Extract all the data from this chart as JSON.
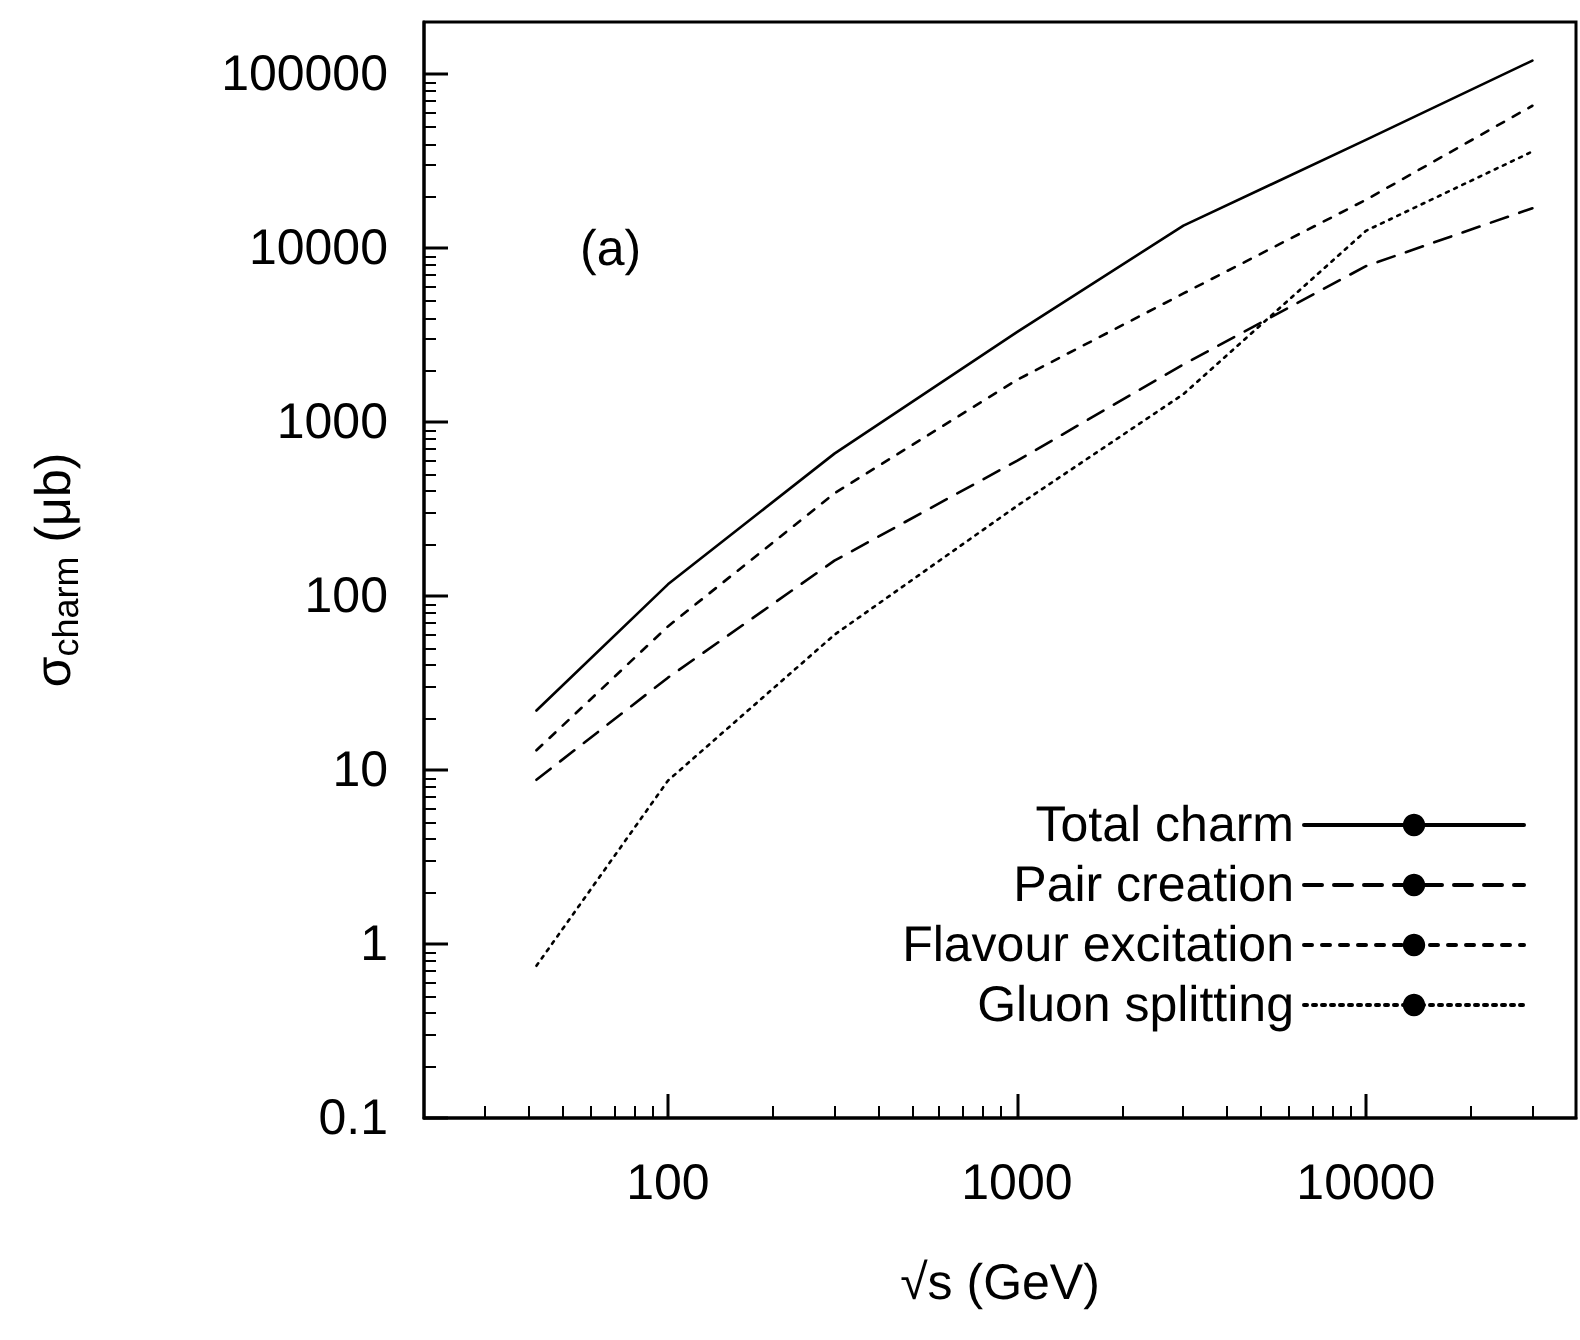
{
  "chart_data": {
    "type": "line",
    "xlabel": "√s (GeV)",
    "ylabel": "σ$_{charm}$ (μb)",
    "log": "xy",
    "xlim": [
      20,
      40000
    ],
    "ylim": [
      0.1,
      200000
    ],
    "xticks": [
      100,
      1000,
      10000
    ],
    "yticks": [
      0.1,
      1,
      10,
      100,
      1000,
      10000,
      100000
    ],
    "grid": false,
    "legend": "bottom right",
    "marker": "none",
    "annotations": [
      "(a)"
    ],
    "x": [
      42,
      100,
      300,
      1000,
      3000,
      10000,
      30000
    ],
    "series": [
      {
        "name": "Total charm",
        "color": "#000000",
        "line_style": "solid",
        "values": [
          22,
          117,
          660,
          3300,
          13500,
          42000,
          120000
        ]
      },
      {
        "name": "Pair creation",
        "color": "#000000",
        "line_style": "dashed",
        "values": [
          8.8,
          34,
          160,
          600,
          2150,
          7900,
          17000
        ]
      },
      {
        "name": "Flavour excitation",
        "color": "#000000",
        "line_style": "dashed",
        "values": [
          13,
          67,
          390,
          1750,
          5500,
          19000,
          66000
        ]
      },
      {
        "name": "Gluon splitting",
        "color": "#000000",
        "line_style": "dotted",
        "values": [
          0.75,
          8.7,
          60,
          330,
          1450,
          12600,
          36000
        ]
      }
    ]
  }
}
